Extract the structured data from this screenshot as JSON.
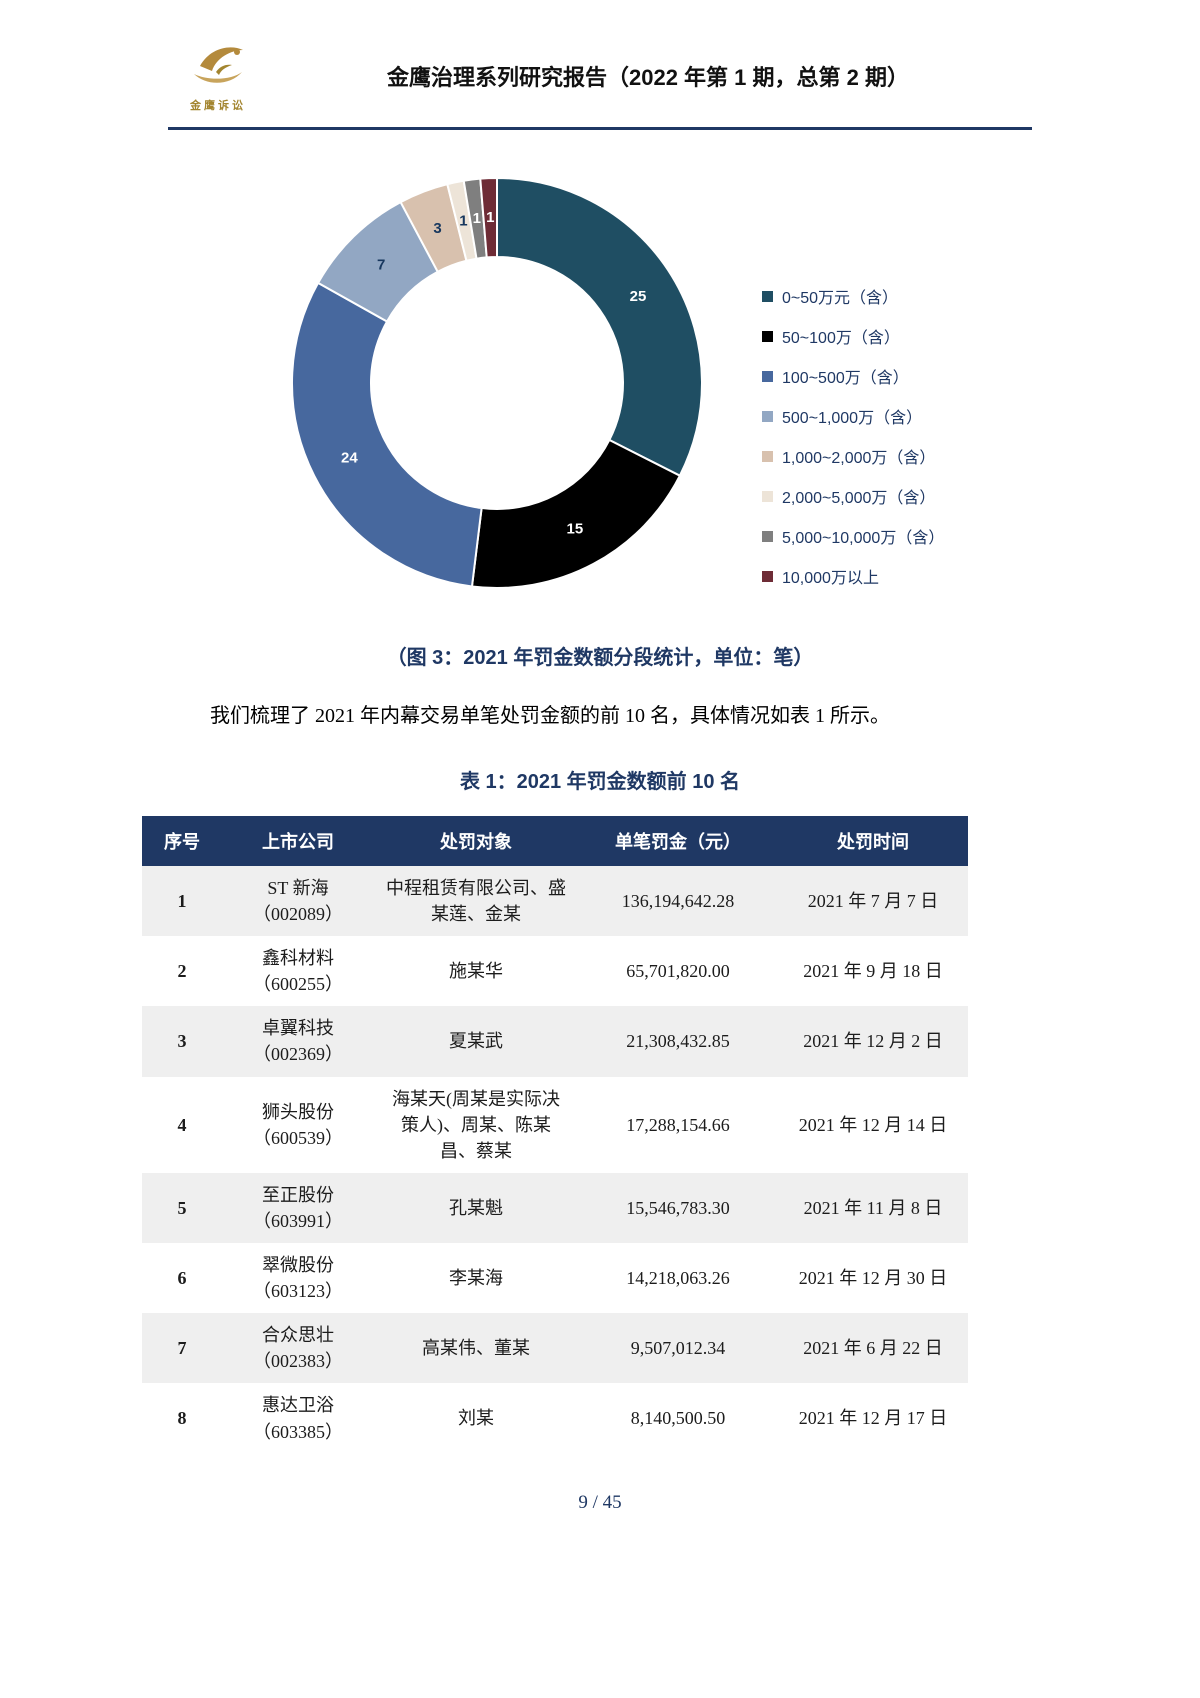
{
  "header": {
    "title": "金鹰治理系列研究报告（2022 年第 1 期，总第 2 期）",
    "logo_text": "金鹰诉讼"
  },
  "chart": {
    "caption": "（图 3：2021 年罚金数额分段统计，单位：笔）",
    "chart_data": {
      "type": "pie",
      "subtype": "donut",
      "title": "2021 年罚金数额分段统计",
      "unit": "笔",
      "categories": [
        "0~50万元（含）",
        "50~100万（含）",
        "100~500万（含）",
        "500~1,000万（含）",
        "1,000~2,000万（含）",
        "2,000~5,000万（含）",
        "5,000~10,000万（含）",
        "10,000万以上"
      ],
      "values": [
        25,
        15,
        24,
        7,
        3,
        1,
        1,
        1
      ],
      "colors": [
        "#1F4E63",
        "#000000",
        "#47689E",
        "#92A7C3",
        "#D8C1AE",
        "#EDE4D8",
        "#7F7F7F",
        "#6E2C36"
      ],
      "label_colors": [
        "#FFFFFF",
        "#FFFFFF",
        "#FFFFFF",
        "#17375E",
        "#17375E",
        "#17375E",
        "#FFFFFF",
        "#FFFFFF"
      ],
      "legend_position": "right",
      "inner_radius_ratio": 0.615
    }
  },
  "paragraph": "我们梳理了 2021 年内幕交易单笔处罚金额的前 10 名，具体情况如表 1 所示。",
  "table": {
    "title": "表 1：2021 年罚金数额前 10 名",
    "columns": [
      "序号",
      "上市公司",
      "处罚对象",
      "单笔罚金（元）",
      "处罚时间"
    ],
    "rows": [
      {
        "no": "1",
        "company_name": "ST 新海",
        "company_code": "（002089）",
        "target": "中程租赁有限公司、盛某莲、金某",
        "fine": "136,194,642.28",
        "date": "2021 年 7 月 7 日"
      },
      {
        "no": "2",
        "company_name": "鑫科材料",
        "company_code": "（600255）",
        "target": "施某华",
        "fine": "65,701,820.00",
        "date": "2021 年 9 月 18 日"
      },
      {
        "no": "3",
        "company_name": "卓翼科技",
        "company_code": "（002369）",
        "target": "夏某武",
        "fine": "21,308,432.85",
        "date": "2021 年 12 月 2 日"
      },
      {
        "no": "4",
        "company_name": "狮头股份",
        "company_code": "（600539）",
        "target": "海某天(周某是实际决策人)、周某、陈某昌、蔡某",
        "fine": "17,288,154.66",
        "date": "2021 年 12 月 14 日"
      },
      {
        "no": "5",
        "company_name": "至正股份",
        "company_code": "（603991）",
        "target": "孔某魁",
        "fine": "15,546,783.30",
        "date": "2021 年 11 月 8 日"
      },
      {
        "no": "6",
        "company_name": "翠微股份",
        "company_code": "（603123）",
        "target": "李某海",
        "fine": "14,218,063.26",
        "date": "2021 年 12 月 30 日"
      },
      {
        "no": "7",
        "company_name": "合众思壮",
        "company_code": "（002383）",
        "target": "高某伟、董某",
        "fine": "9,507,012.34",
        "date": "2021 年 6 月 22 日"
      },
      {
        "no": "8",
        "company_name": "惠达卫浴",
        "company_code": "（603385）",
        "target": "刘某",
        "fine": "8,140,500.50",
        "date": "2021 年 12 月 17 日"
      }
    ]
  },
  "footer": {
    "page_number": "9 / 45"
  }
}
